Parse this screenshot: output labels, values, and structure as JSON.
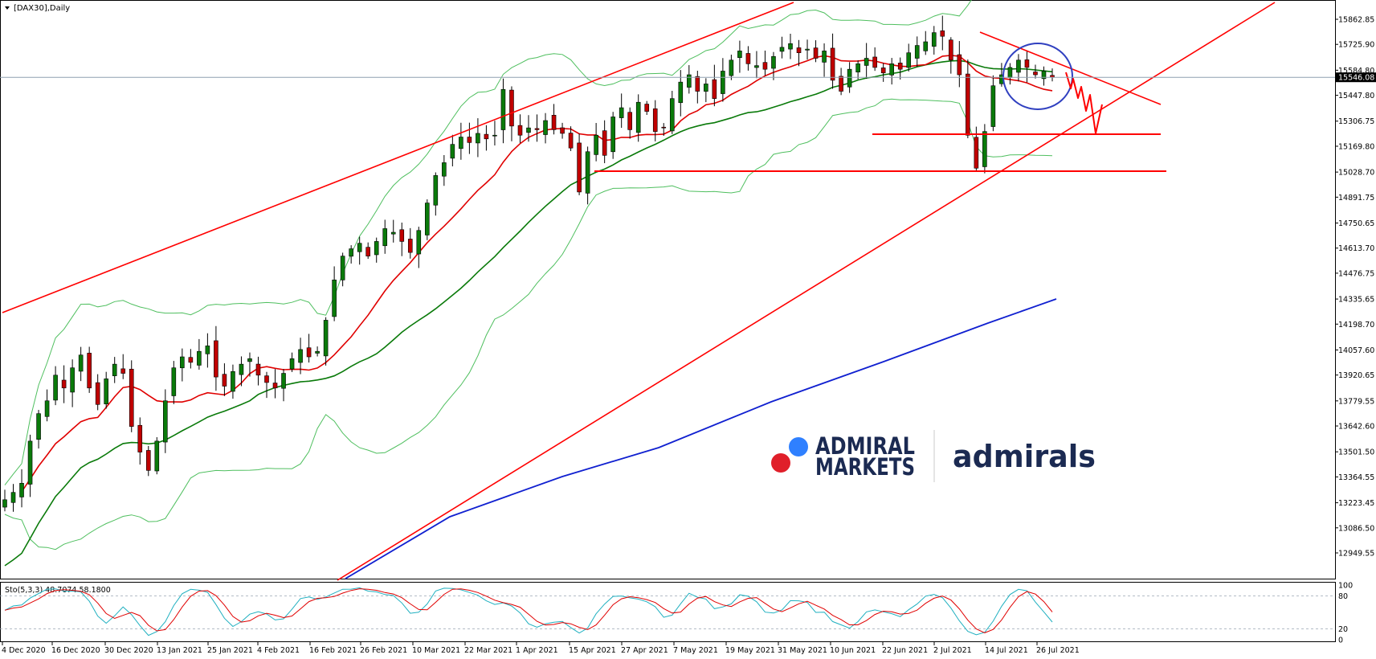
{
  "chart_data": {
    "type": "candlestick",
    "title": "[DAX30],Daily",
    "symbol": "DAX30",
    "timeframe": "Daily",
    "ylim": [
      12880,
      15990
    ],
    "y_ticks": [
      "15862.85",
      "15725.90",
      "15584.80",
      "15447.80",
      "15306.75",
      "15169.80",
      "15028.70",
      "14891.75",
      "14750.65",
      "14613.70",
      "14476.75",
      "14335.65",
      "14198.70",
      "14057.60",
      "13920.65",
      "13779.55",
      "13642.60",
      "13501.50",
      "13364.55",
      "13223.45",
      "13086.50",
      "12949.55"
    ],
    "current_price": {
      "value": 15546.08,
      "label": "15546.08",
      "color": "#000000"
    },
    "x_labels": [
      "4 Dec 2020",
      "16 Dec 2020",
      "30 Dec 2020",
      "13 Jan 2021",
      "25 Jan 2021",
      "4 Feb 2021",
      "16 Feb 2021",
      "26 Feb 2021",
      "10 Mar 2021",
      "22 Mar 2021",
      "1 Apr 2021",
      "15 Apr 2021",
      "27 Apr 2021",
      "7 May 2021",
      "19 May 2021",
      "31 May 2021",
      "10 Jun 2021",
      "22 Jun 2021",
      "2 Jul 2021",
      "14 Jul 2021",
      "26 Jul 2021"
    ],
    "ohlc_anchor_closes": [
      13240,
      13280,
      13330,
      13560,
      13710,
      13780,
      13920,
      13850,
      13960,
      14030,
      13850,
      13760,
      13900,
      13980,
      13930,
      13640,
      13500,
      13400,
      13560,
      13780,
      13960,
      14020,
      13990,
      14050,
      14080,
      13910,
      13860,
      13940,
      13980,
      14010,
      13920,
      13880,
      13850,
      13930,
      14010,
      14060,
      14020,
      14050,
      14220,
      14440,
      14570,
      14610,
      14640,
      14570,
      14650,
      14720,
      14700,
      14650,
      14590,
      14710,
      14860,
      15010,
      15080,
      15180,
      15220,
      15190,
      15240,
      15210,
      15230,
      15480,
      15280,
      15230,
      15270,
      15260,
      15310,
      15260,
      15240,
      15160,
      14920,
      15140,
      15230,
      15120,
      15330,
      15380,
      15260,
      15410,
      15360,
      15250,
      15270,
      15430,
      15520,
      15560,
      15470,
      15510,
      15430,
      15580,
      15640,
      15690,
      15620,
      15610,
      15590,
      15660,
      15710,
      15730,
      15680,
      15700,
      15650,
      15690,
      15530,
      15470,
      15590,
      15620,
      15650,
      15600,
      15570,
      15620,
      15590,
      15680,
      15720,
      15740,
      15790,
      15770,
      15640,
      15560,
      15230,
      15050,
      15250,
      15500,
      15560,
      15600,
      15640,
      15600,
      15560,
      15580,
      15546
    ],
    "indicators": {
      "ma_fast_color": "#e00000",
      "ma_medium_color": "#0a7a0a",
      "ma_long_color": "#1020d0",
      "bollinger_color": "#4fbf5f"
    },
    "drawings_color": "#ff0000",
    "candle_colors": {
      "bull": "#0a7a0a",
      "bear": "#c00000"
    },
    "oscillator": {
      "label": "Sto(5,3,3) 48.7074 58.1800",
      "ylim": [
        0,
        100
      ],
      "levels": [
        20,
        80
      ],
      "tick_labels": [
        "100",
        "80",
        "20",
        "0"
      ],
      "main_color": "#20b0c0",
      "signal_color": "#e00000"
    }
  },
  "watermark": {
    "brand_left_line1": "ADMIRAL",
    "brand_left_line2": "MARKETS",
    "brand_right": "admirals",
    "dot_blue": "#2f80ff",
    "dot_red": "#e01f2a"
  }
}
